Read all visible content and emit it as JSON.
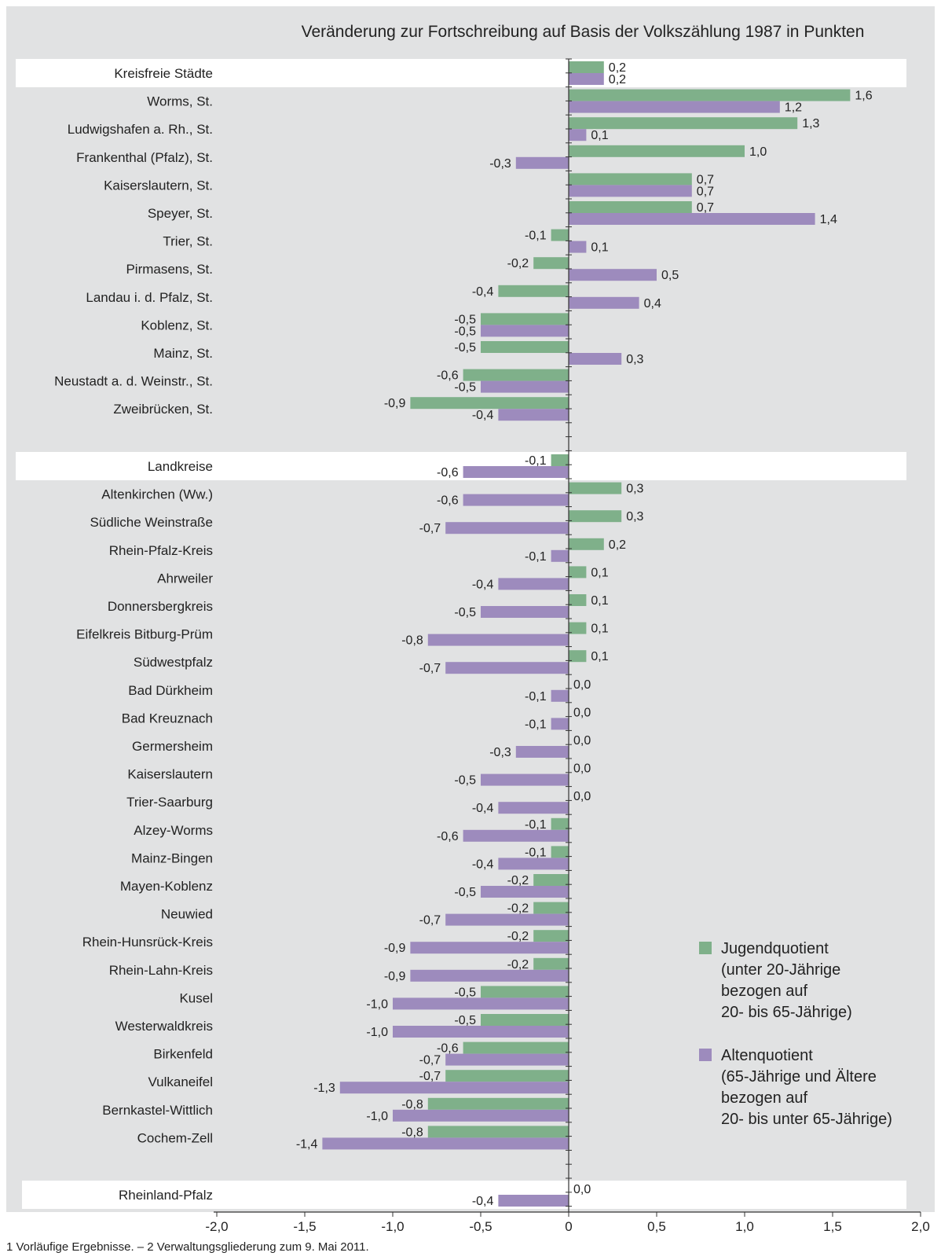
{
  "chart_data": {
    "type": "bar",
    "orientation": "horizontal",
    "title": "Veränderung zur Fortschreibung auf Basis der Volkszählung 1987 in Punkten",
    "xlim": [
      -2.0,
      2.0
    ],
    "x_ticks": [
      "-2,0",
      "-1,5",
      "-1,0",
      "-0,5",
      "0",
      "0,5",
      "1,0",
      "1,5",
      "2,0"
    ],
    "x_tick_values": [
      -2.0,
      -1.5,
      -1.0,
      -0.5,
      0,
      0.5,
      1.0,
      1.5,
      2.0
    ],
    "grid": false,
    "legend_position": "bottom-right",
    "series": [
      {
        "name": "Jugendquotient (unter 20-Jährige bezogen auf 20- bis 65-Jährige)",
        "color": "#7fb08a"
      },
      {
        "name": "Altenquotient (65-Jährige und Ältere bezogen auf 20- bis unter 65-Jährige)",
        "color": "#9d8bbd"
      }
    ],
    "categories": [
      {
        "label": "Kreisfreie Städte",
        "header": true,
        "values": [
          0.2,
          0.2
        ],
        "value_labels": [
          "0,2",
          "0,2"
        ]
      },
      {
        "label": "Worms, St.",
        "values": [
          1.6,
          1.2
        ],
        "value_labels": [
          "1,6",
          "1,2"
        ]
      },
      {
        "label": "Ludwigshafen a. Rh., St.",
        "values": [
          1.3,
          0.1
        ],
        "value_labels": [
          "1,3",
          "0,1"
        ]
      },
      {
        "label": "Frankenthal (Pfalz), St.",
        "values": [
          1.0,
          -0.3
        ],
        "value_labels": [
          "1,0",
          "-0,3"
        ]
      },
      {
        "label": "Kaiserslautern, St.",
        "values": [
          0.7,
          0.7
        ],
        "value_labels": [
          "0,7",
          "0,7"
        ]
      },
      {
        "label": "Speyer, St.",
        "values": [
          0.7,
          1.4
        ],
        "value_labels": [
          "0,7",
          "1,4"
        ]
      },
      {
        "label": "Trier, St.",
        "values": [
          -0.1,
          0.1
        ],
        "value_labels": [
          "-0,1",
          "0,1"
        ]
      },
      {
        "label": "Pirmasens, St.",
        "values": [
          -0.2,
          0.5
        ],
        "value_labels": [
          "-0,2",
          "0,5"
        ]
      },
      {
        "label": "Landau i. d. Pfalz, St.",
        "values": [
          -0.4,
          0.4
        ],
        "value_labels": [
          "-0,4",
          "0,4"
        ]
      },
      {
        "label": "Koblenz, St.",
        "values": [
          -0.5,
          -0.5
        ],
        "value_labels": [
          "-0,5",
          "-0,5"
        ]
      },
      {
        "label": "Mainz, St.",
        "values": [
          -0.5,
          0.3
        ],
        "value_labels": [
          "-0,5",
          "0,3"
        ]
      },
      {
        "label": "Neustadt a. d. Weinstr., St.",
        "values": [
          -0.6,
          -0.5
        ],
        "value_labels": [
          "-0,6",
          "-0,5"
        ]
      },
      {
        "label": "Zweibrücken, St.",
        "values": [
          -0.9,
          -0.4
        ],
        "value_labels": [
          "-0,9",
          "-0,4"
        ]
      },
      {
        "label": "Landkreise",
        "header": true,
        "values": [
          -0.1,
          -0.6
        ],
        "value_labels": [
          "-0,1",
          "-0,6"
        ]
      },
      {
        "label": "Altenkirchen (Ww.)",
        "values": [
          0.3,
          -0.6
        ],
        "value_labels": [
          "0,3",
          "-0,6"
        ]
      },
      {
        "label": "Südliche Weinstraße",
        "values": [
          0.3,
          -0.7
        ],
        "value_labels": [
          "0,3",
          "-0,7"
        ]
      },
      {
        "label": "Rhein-Pfalz-Kreis",
        "values": [
          0.2,
          -0.1
        ],
        "value_labels": [
          "0,2",
          "-0,1"
        ]
      },
      {
        "label": "Ahrweiler",
        "values": [
          0.1,
          -0.4
        ],
        "value_labels": [
          "0,1",
          "-0,4"
        ]
      },
      {
        "label": "Donnersbergkreis",
        "values": [
          0.1,
          -0.5
        ],
        "value_labels": [
          "0,1",
          "-0,5"
        ]
      },
      {
        "label": "Eifelkreis Bitburg-Prüm",
        "values": [
          0.1,
          -0.8
        ],
        "value_labels": [
          "0,1",
          "-0,8"
        ]
      },
      {
        "label": "Südwestpfalz",
        "values": [
          0.1,
          -0.7
        ],
        "value_labels": [
          "0,1",
          "-0,7"
        ]
      },
      {
        "label": "Bad Dürkheim",
        "values": [
          0.0,
          -0.1
        ],
        "value_labels": [
          "0,0",
          "-0,1"
        ]
      },
      {
        "label": "Bad Kreuznach",
        "values": [
          0.0,
          -0.1
        ],
        "value_labels": [
          "0,0",
          "-0,1"
        ]
      },
      {
        "label": "Germersheim",
        "values": [
          0.0,
          -0.3
        ],
        "value_labels": [
          "0,0",
          "-0,3"
        ]
      },
      {
        "label": "Kaiserslautern",
        "values": [
          0.0,
          -0.5
        ],
        "value_labels": [
          "0,0",
          "-0,5"
        ]
      },
      {
        "label": "Trier-Saarburg",
        "values": [
          0.0,
          -0.4
        ],
        "value_labels": [
          "0,0",
          "-0,4"
        ]
      },
      {
        "label": "Alzey-Worms",
        "values": [
          -0.1,
          -0.6
        ],
        "value_labels": [
          "-0,1",
          "-0,6"
        ]
      },
      {
        "label": "Mainz-Bingen",
        "values": [
          -0.1,
          -0.4
        ],
        "value_labels": [
          "-0,1",
          "-0,4"
        ]
      },
      {
        "label": "Mayen-Koblenz",
        "values": [
          -0.2,
          -0.5
        ],
        "value_labels": [
          "-0,2",
          "-0,5"
        ]
      },
      {
        "label": "Neuwied",
        "values": [
          -0.2,
          -0.7
        ],
        "value_labels": [
          "-0,2",
          "-0,7"
        ]
      },
      {
        "label": "Rhein-Hunsrück-Kreis",
        "values": [
          -0.2,
          -0.9
        ],
        "value_labels": [
          "-0,2",
          "-0,9"
        ]
      },
      {
        "label": "Rhein-Lahn-Kreis",
        "values": [
          -0.2,
          -0.9
        ],
        "value_labels": [
          "-0,2",
          "-0,9"
        ]
      },
      {
        "label": "Kusel",
        "values": [
          -0.5,
          -1.0
        ],
        "value_labels": [
          "-0,5",
          "-1,0"
        ]
      },
      {
        "label": "Westerwaldkreis",
        "values": [
          -0.5,
          -1.0
        ],
        "value_labels": [
          "-0,5",
          "-1,0"
        ]
      },
      {
        "label": "Birkenfeld",
        "values": [
          -0.6,
          -0.7
        ],
        "value_labels": [
          "-0,6",
          "-0,7"
        ]
      },
      {
        "label": "Vulkaneifel",
        "values": [
          -0.7,
          -1.3
        ],
        "value_labels": [
          "-0,7",
          "-1,3"
        ]
      },
      {
        "label": "Bernkastel-Wittlich",
        "values": [
          -0.8,
          -1.0
        ],
        "value_labels": [
          "-0,8",
          "-1,0"
        ]
      },
      {
        "label": "Cochem-Zell",
        "values": [
          -0.8,
          -1.4
        ],
        "value_labels": [
          "-0,8",
          "-1,4"
        ]
      },
      {
        "label": "Rheinland-Pfalz",
        "header": true,
        "values": [
          0.0,
          -0.4
        ],
        "value_labels": [
          "0,0",
          "-0,4"
        ]
      }
    ]
  },
  "legend_lines": [
    [
      "Jugendquotient",
      "(unter 20-Jährige",
      "bezogen auf",
      "20- bis 65-Jährige)"
    ],
    [
      "Altenquotient",
      "(65-Jährige und Ältere",
      "bezogen auf",
      "20- bis unter 65-Jährige)"
    ]
  ],
  "colors": {
    "background_panel": "#e1e2e3",
    "header_band": "#ffffff",
    "axis": "#333333",
    "text": "#222222"
  },
  "footnote": "1 Vorläufige Ergebnisse. – 2 Verwaltungsgliederung zum 9. Mai 2011."
}
